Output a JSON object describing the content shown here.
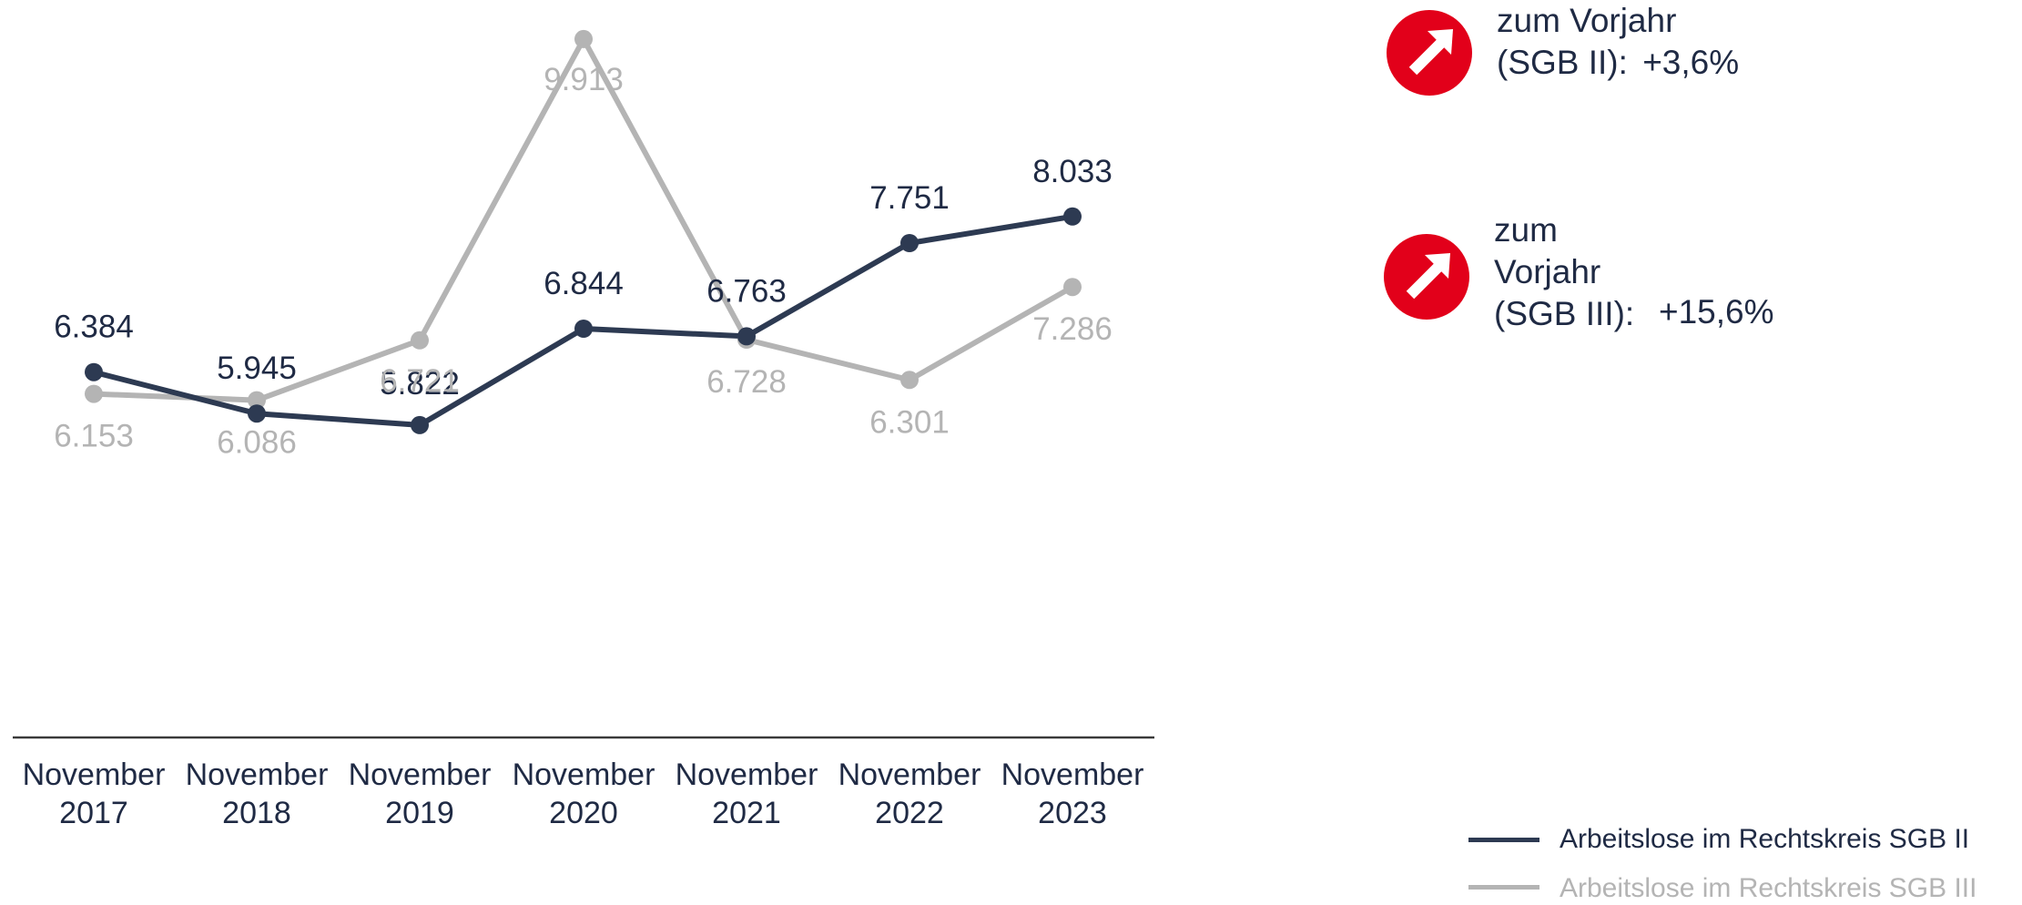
{
  "chart_data": {
    "type": "line",
    "categories": [
      [
        "November",
        "2017"
      ],
      [
        "November",
        "2018"
      ],
      [
        "November",
        "2019"
      ],
      [
        "November",
        "2020"
      ],
      [
        "November",
        "2021"
      ],
      [
        "November",
        "2022"
      ],
      [
        "November",
        "2023"
      ]
    ],
    "series": [
      {
        "name": "Arbeitslose im Rechtskreis SGB II",
        "color": "#2d3a52",
        "values": [
          6384,
          5945,
          5822,
          6844,
          6763,
          7751,
          8033
        ],
        "labels": [
          "6.384",
          "5.945",
          "5.822",
          "6.844",
          "6.763",
          "7.751",
          "8.033"
        ]
      },
      {
        "name": "Arbeitslose im Rechtskreis SGB III",
        "color": "#b4b4b4",
        "values": [
          6153,
          6086,
          6721,
          9913,
          6728,
          6301,
          7286
        ],
        "labels": [
          "6.153",
          "6.086",
          "6.721",
          "9.913",
          "6.728",
          "6.301",
          "7.286"
        ]
      }
    ],
    "legend_position": "bottom-right",
    "grid": false
  },
  "changes": [
    {
      "icon": "arrow-up-right-icon",
      "badge_color": "#e2001a",
      "lines": [
        "zum Vorjahr",
        "(SGB II):"
      ],
      "value": "+3,6%"
    },
    {
      "icon": "arrow-up-right-icon",
      "badge_color": "#e2001a",
      "lines": [
        "zum",
        "Vorjahr",
        "(SGB III):"
      ],
      "value": "+15,6%"
    }
  ]
}
